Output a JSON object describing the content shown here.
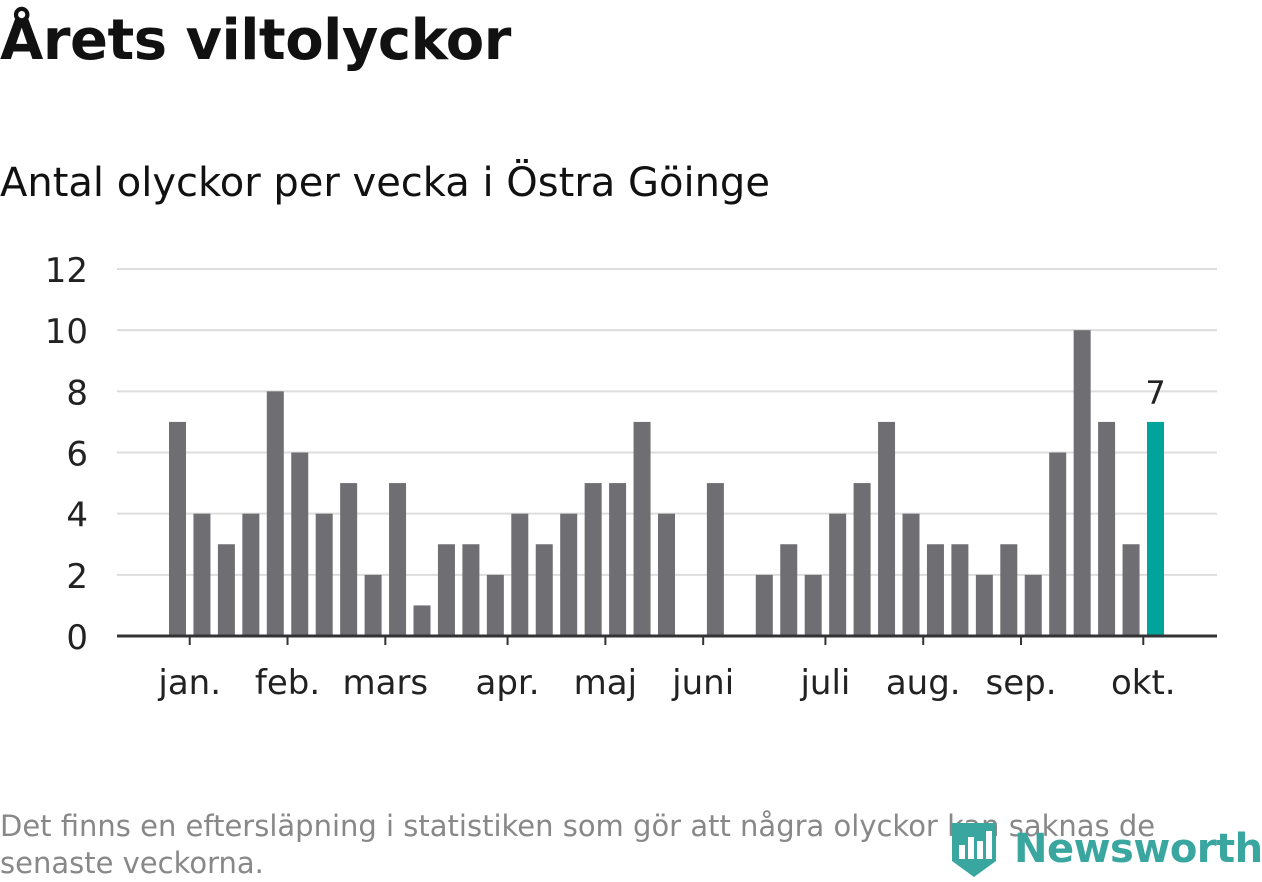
{
  "title": "Årets viltolyckor",
  "subtitle": "Antal olyckor per vecka i Östra Göinge",
  "footnote": "Det finns en eftersläpning i statistiken som gör att några olyckor kan saknas de senaste veckorna.",
  "logo": {
    "text": "Newsworthy",
    "icon": "bar-chart-badge-icon",
    "color": "#3aa6a0"
  },
  "colors": {
    "bar": "#6f6e73",
    "highlight": "#00a49a",
    "grid": "#dddddd",
    "axis": "#333333"
  },
  "chart_data": {
    "type": "bar",
    "title": "Årets viltolyckor",
    "subtitle": "Antal olyckor per vecka i Östra Göinge",
    "xlabel": "",
    "ylabel": "",
    "ylim": [
      0,
      12
    ],
    "yticks": [
      0,
      2,
      4,
      6,
      8,
      10,
      12
    ],
    "grid": true,
    "values": [
      7,
      4,
      3,
      4,
      8,
      6,
      4,
      5,
      2,
      5,
      1,
      3,
      3,
      2,
      4,
      3,
      4,
      5,
      5,
      7,
      4,
      0,
      5,
      0,
      2,
      3,
      2,
      4,
      5,
      7,
      4,
      3,
      3,
      2,
      3,
      2,
      6,
      10,
      7,
      3,
      7
    ],
    "highlight_index": 40,
    "highlight_label": "7",
    "month_ticks": [
      {
        "label": "jan.",
        "week_index": 0.5
      },
      {
        "label": "feb.",
        "week_index": 4.5
      },
      {
        "label": "mars",
        "week_index": 8.5
      },
      {
        "label": "apr.",
        "week_index": 13.5
      },
      {
        "label": "maj",
        "week_index": 17.5
      },
      {
        "label": "juni",
        "week_index": 21.5
      },
      {
        "label": "juli",
        "week_index": 26.5
      },
      {
        "label": "aug.",
        "week_index": 30.5
      },
      {
        "label": "sep.",
        "week_index": 34.5
      },
      {
        "label": "okt.",
        "week_index": 39.5
      }
    ]
  }
}
